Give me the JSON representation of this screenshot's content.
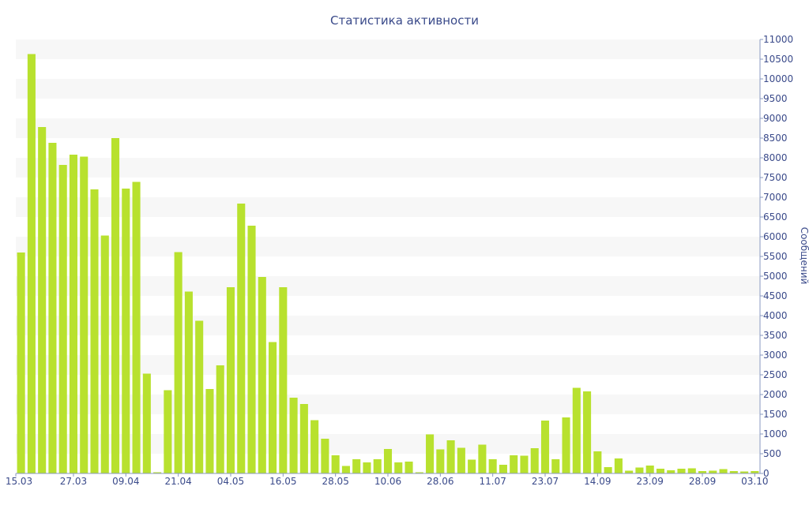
{
  "chart_data": {
    "type": "bar",
    "title": "Статистика активности",
    "xlabel": "",
    "ylabel": "Сообщений",
    "ylim": [
      0,
      11000
    ],
    "yticks": [
      0,
      500,
      1000,
      1500,
      2000,
      2500,
      3000,
      3500,
      4000,
      4500,
      5000,
      5500,
      6000,
      6500,
      7000,
      7500,
      8000,
      8500,
      9000,
      9500,
      10000,
      10500,
      11000
    ],
    "x_tick_labels": [
      {
        "label": "15.03",
        "index": 0
      },
      {
        "label": "27.03",
        "index": 5
      },
      {
        "label": "09.04",
        "index": 10
      },
      {
        "label": "21.04",
        "index": 15
      },
      {
        "label": "04.05",
        "index": 20
      },
      {
        "label": "16.05",
        "index": 25
      },
      {
        "label": "28.05",
        "index": 30
      },
      {
        "label": "10.06",
        "index": 35
      },
      {
        "label": "28.06",
        "index": 40
      },
      {
        "label": "11.07",
        "index": 45
      },
      {
        "label": "23.07",
        "index": 50
      },
      {
        "label": "14.09",
        "index": 55
      },
      {
        "label": "23.09",
        "index": 60
      },
      {
        "label": "28.09",
        "index": 65
      },
      {
        "label": "03.10",
        "index": 70
      }
    ],
    "values": [
      5600,
      10630,
      8780,
      8380,
      7820,
      8080,
      8030,
      7200,
      6030,
      8500,
      7220,
      7390,
      2530,
      30,
      2110,
      5610,
      4610,
      3870,
      2140,
      2740,
      4720,
      6840,
      6280,
      4980,
      3330,
      4720,
      1920,
      1760,
      1350,
      880,
      460,
      190,
      360,
      280,
      360,
      620,
      280,
      300,
      30,
      990,
      610,
      840,
      650,
      350,
      730,
      360,
      220,
      460,
      450,
      640,
      1340,
      360,
      1420,
      2170,
      2080,
      560,
      160,
      380,
      70,
      150,
      200,
      120,
      80,
      120,
      130,
      60,
      70,
      110,
      60,
      50,
      60
    ]
  },
  "colors": {
    "bar": "#b8e12e",
    "band": "#f7f7f7",
    "text": "#3a4a8a",
    "axis": "#8898c0"
  }
}
